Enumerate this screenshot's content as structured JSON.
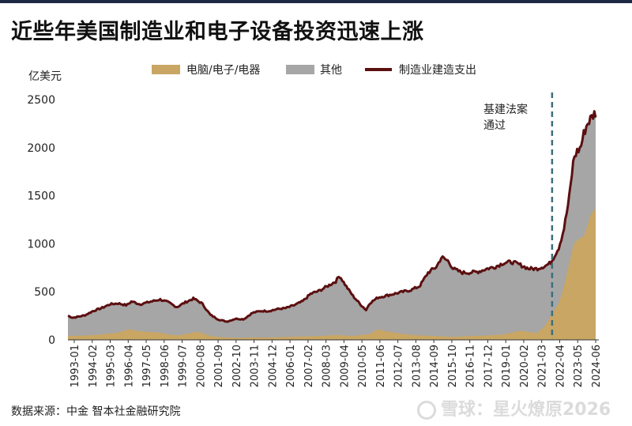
{
  "title": "近些年美国制造业和电子设备投资迅速上涨",
  "source": "数据来源：中金 智本社金融研究院",
  "watermark": "雪球：星火燎原2026",
  "colors": {
    "electronics": "#c9a663",
    "other": "#a6a6a6",
    "line": "#5c0f10",
    "annotation": "#3d6e7d"
  },
  "chart_data": {
    "type": "area",
    "ylabel": "亿美元",
    "ylim": [
      0,
      2500
    ],
    "yticks": [
      0,
      500,
      1000,
      1500,
      2000,
      2500
    ],
    "x_tick_labels": [
      "1993-01",
      "1994-02",
      "1995-03",
      "1996-04",
      "1997-05",
      "1998-06",
      "1999-07",
      "2000-08",
      "2001-09",
      "2002-10",
      "2003-11",
      "2004-12",
      "2006-01",
      "2007-02",
      "2008-03",
      "2009-04",
      "2010-05",
      "2011-06",
      "2012-07",
      "2013-08",
      "2014-09",
      "2015-10",
      "2016-11",
      "2017-12",
      "2019-01",
      "2020-02",
      "2021-03",
      "2022-04",
      "2023-05",
      "2024-06"
    ],
    "legend": [
      "电脑/电子/电器",
      "其他",
      "制造业建造支出"
    ],
    "legend_position": "top",
    "annotation": {
      "text_lines": [
        "基建法案",
        "通过"
      ],
      "x": 2021.9
    },
    "series": [
      {
        "name": "电脑/电子/电器",
        "x": [
          1993.0,
          1994.0,
          1995.0,
          1996.0,
          1996.6,
          1997.3,
          1998.0,
          1998.5,
          1999.0,
          1999.6,
          2000.0,
          2000.7,
          2001.0,
          2001.5,
          2002.0,
          2003.0,
          2004.0,
          2005.0,
          2006.0,
          2007.0,
          2008.0,
          2009.0,
          2010.0,
          2011.0,
          2011.5,
          2012.0,
          2013.0,
          2014.0,
          2015.0,
          2016.0,
          2017.0,
          2018.0,
          2019.0,
          2020.0,
          2021.0,
          2021.5,
          2022.0,
          2022.3,
          2022.6,
          2023.0,
          2023.2,
          2023.5,
          2023.8,
          2024.0,
          2024.2,
          2024.5
        ],
        "y": [
          40,
          45,
          55,
          75,
          110,
          90,
          80,
          75,
          55,
          45,
          60,
          85,
          70,
          40,
          30,
          20,
          25,
          25,
          30,
          35,
          40,
          50,
          40,
          60,
          110,
          90,
          60,
          45,
          40,
          30,
          40,
          45,
          55,
          95,
          70,
          150,
          300,
          380,
          550,
          850,
          1000,
          1050,
          1080,
          1180,
          1300,
          1370
        ]
      },
      {
        "name": "制造业建造支出",
        "x": [
          1993.0,
          1993.3,
          1994.0,
          1994.5,
          1995.0,
          1995.5,
          1996.0,
          1996.5,
          1996.8,
          1997.3,
          1998.0,
          1998.5,
          1999.0,
          1999.5,
          2000.0,
          2000.5,
          2001.0,
          2001.5,
          2002.0,
          2002.5,
          2003.0,
          2003.5,
          2004.0,
          2004.5,
          2005.0,
          2005.5,
          2006.0,
          2006.5,
          2007.0,
          2007.5,
          2008.0,
          2008.5,
          2009.0,
          2009.2,
          2009.6,
          2010.0,
          2010.4,
          2010.8,
          2011.0,
          2011.5,
          2012.0,
          2012.5,
          2013.0,
          2013.5,
          2014.0,
          2014.5,
          2015.0,
          2015.3,
          2015.7,
          2016.0,
          2016.5,
          2017.0,
          2017.5,
          2018.0,
          2018.5,
          2019.0,
          2019.5,
          2020.0,
          2020.5,
          2021.0,
          2021.5,
          2021.8,
          2022.0,
          2022.3,
          2022.6,
          2022.9,
          2023.2,
          2023.4,
          2023.6,
          2023.8,
          2024.0,
          2024.2,
          2024.4,
          2024.5
        ],
        "y": [
          250,
          230,
          255,
          300,
          330,
          370,
          380,
          360,
          400,
          370,
          400,
          420,
          390,
          340,
          390,
          430,
          380,
          260,
          210,
          190,
          220,
          215,
          280,
          300,
          300,
          320,
          330,
          360,
          400,
          480,
          510,
          560,
          610,
          670,
          560,
          460,
          380,
          310,
          380,
          440,
          460,
          480,
          500,
          520,
          560,
          700,
          760,
          860,
          820,
          740,
          700,
          700,
          710,
          740,
          760,
          800,
          810,
          780,
          740,
          740,
          770,
          800,
          860,
          960,
          1150,
          1450,
          1900,
          1960,
          2000,
          2150,
          2250,
          2300,
          2350,
          2360
        ]
      },
      {
        "name": "其他",
        "note_free": "",
        "x": [],
        "y": []
      }
    ]
  }
}
